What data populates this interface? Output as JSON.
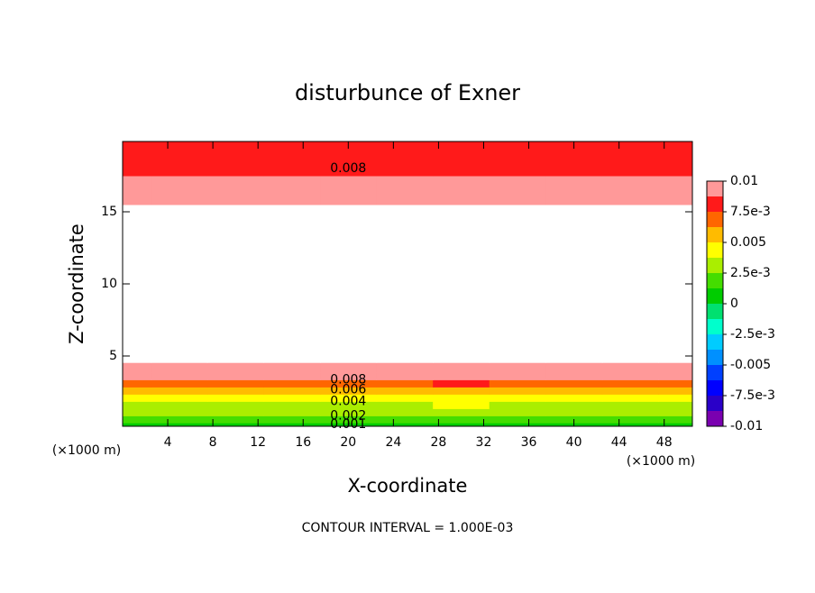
{
  "chart_data": {
    "type": "contour",
    "title": "disturbunce of Exner",
    "xlabel": "X-coordinate",
    "ylabel": "Z-coordinate",
    "x_unit_left": "(×1000 m)",
    "x_unit_right": "(×1000 m)",
    "footer": "CONTOUR INTERVAL = 1.000E-03",
    "xlim": [
      0,
      50.5
    ],
    "ylim": [
      0.125,
      19.875
    ],
    "xticks": [
      4,
      8,
      12,
      16,
      20,
      24,
      28,
      32,
      36,
      40,
      44,
      48
    ],
    "yticks": [
      5,
      10,
      15
    ],
    "x": [
      0,
      5,
      10,
      15,
      20,
      25,
      30,
      35,
      40,
      45,
      50
    ],
    "z": [
      0.125,
      0.6,
      1.1,
      1.6,
      2.1,
      2.6,
      3.1,
      3.6,
      4.1,
      5,
      10,
      15,
      16,
      17,
      18,
      19,
      19.875
    ],
    "values": [
      [
        0.0008,
        0.0008,
        0.0009,
        0.0008,
        0.0008,
        0.0008,
        0.0011,
        0.0009,
        0.0008,
        0.0008,
        0.0008
      ],
      [
        0.0015,
        0.0015,
        0.0016,
        0.0015,
        0.0015,
        0.0015,
        0.0018,
        0.0016,
        0.0015,
        0.0015,
        0.0015
      ],
      [
        0.0025,
        0.0025,
        0.0026,
        0.0025,
        0.0025,
        0.0025,
        0.0028,
        0.0026,
        0.0025,
        0.0025,
        0.0025
      ],
      [
        0.0035,
        0.0035,
        0.0036,
        0.0035,
        0.0035,
        0.0035,
        0.0038,
        0.0036,
        0.0035,
        0.0035,
        0.0035
      ],
      [
        0.0045,
        0.0045,
        0.0046,
        0.0045,
        0.0045,
        0.0045,
        0.0048,
        0.0046,
        0.0045,
        0.0045,
        0.0045
      ],
      [
        0.0058,
        0.0058,
        0.0059,
        0.0058,
        0.0058,
        0.0058,
        0.0061,
        0.0059,
        0.0058,
        0.0058,
        0.0058
      ],
      [
        0.0072,
        0.0072,
        0.0073,
        0.0072,
        0.0072,
        0.0072,
        0.0075,
        0.0073,
        0.0072,
        0.0072,
        0.0072
      ],
      [
        0.0088,
        0.0088,
        0.0089,
        0.0088,
        0.0088,
        0.0088,
        0.0091,
        0.0089,
        0.0088,
        0.0088,
        0.0088
      ],
      [
        0.0098,
        0.0098,
        0.0099,
        0.0098,
        0.0098,
        0.0098,
        0.0099,
        0.0099,
        0.0098,
        0.0098,
        0.0098
      ],
      [
        0.0115,
        0.0115,
        0.0115,
        0.0115,
        0.0115,
        0.0115,
        0.0115,
        0.0115,
        0.0115,
        0.0115,
        0.0115
      ],
      [
        0.013,
        0.013,
        0.013,
        0.013,
        0.013,
        0.013,
        0.013,
        0.013,
        0.013,
        0.013,
        0.013
      ],
      [
        0.01,
        0.01,
        0.01,
        0.01,
        0.01,
        0.01,
        0.01,
        0.01,
        0.01,
        0.01,
        0.01
      ],
      [
        0.0094,
        0.0094,
        0.0094,
        0.0094,
        0.0094,
        0.0094,
        0.0094,
        0.0094,
        0.0094,
        0.0094,
        0.0094
      ],
      [
        0.0088,
        0.0088,
        0.0088,
        0.0088,
        0.0088,
        0.0088,
        0.0088,
        0.0088,
        0.0088,
        0.0088,
        0.0088
      ],
      [
        0.008,
        0.008,
        0.008,
        0.008,
        0.008,
        0.008,
        0.008,
        0.008,
        0.008,
        0.008,
        0.008
      ],
      [
        0.0078,
        0.0078,
        0.0078,
        0.0078,
        0.0078,
        0.0078,
        0.0078,
        0.0078,
        0.0078,
        0.0078,
        0.0078
      ],
      [
        0.0076,
        0.0076,
        0.0076,
        0.0076,
        0.0076,
        0.0076,
        0.0076,
        0.0076,
        0.0076,
        0.0076,
        0.0076
      ]
    ],
    "levels": [
      -0.01,
      -0.00875,
      -0.0075,
      -0.00625,
      -0.005,
      -0.00375,
      -0.0025,
      -0.00125,
      0,
      0.00125,
      0.0025,
      0.00375,
      0.005,
      0.00625,
      0.0075,
      0.00875,
      0.01
    ],
    "colors": [
      "#7a00b0",
      "#2a00c8",
      "#0000ff",
      "#0040ff",
      "#0090ff",
      "#00ccff",
      "#00ffcc",
      "#00e070",
      "#00cc00",
      "#44dd00",
      "#aaee00",
      "#ffff00",
      "#ffbb00",
      "#ff6600",
      "#ff1a1a",
      "#ff9999"
    ],
    "colorbar_ticks": [
      0.01,
      {
        "value": 0.0075,
        "label": "7.5e-3"
      },
      0.005,
      {
        "value": 0.0025,
        "label": "2.5e-3"
      },
      0,
      {
        "value": -0.0025,
        "label": "-2.5e-3"
      },
      -0.005,
      {
        "value": -0.0075,
        "label": "-7.5e-3"
      },
      -0.01
    ],
    "contour_labels": [
      0.008,
      0.006,
      0.004,
      0.002,
      0.001,
      0.008
    ]
  }
}
